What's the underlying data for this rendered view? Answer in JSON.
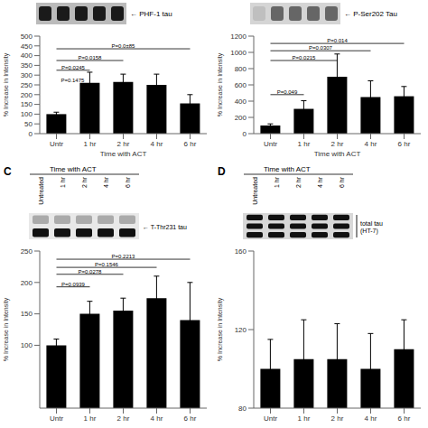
{
  "chart_data": [
    {
      "type": "bar",
      "categories": [
        "Untr",
        "1 hr",
        "2 hr",
        "4 hr",
        "6 hr"
      ],
      "values": [
        100,
        260,
        265,
        250,
        155
      ],
      "errors": [
        10,
        55,
        40,
        55,
        45
      ],
      "ylabel": "% Increase in Intensity",
      "xlabel": "Time with ACT",
      "ylim": [
        0,
        500
      ],
      "yticks": [
        0,
        50,
        100,
        150,
        200,
        250,
        300,
        350,
        400,
        450,
        500
      ],
      "color": "#000000",
      "annotations": [
        {
          "text": "P=0.1475",
          "from": "Untr",
          "to": "Untr",
          "y": 275
        },
        {
          "text": "P=0.0245",
          "from": "Untr",
          "to": "1 hr",
          "y": 325
        },
        {
          "text": "P=0.0158",
          "from": "Untr",
          "to": "2 hr",
          "y": 375
        },
        {
          "text": "P=0.0±85",
          "from": "Untr",
          "to": "6 hr",
          "y": 435
        }
      ],
      "blot": {
        "label": "← PHF-1 tau"
      }
    },
    {
      "type": "bar",
      "categories": [
        "Untr",
        "1 hr",
        "2 hr",
        "4 hr",
        "6 hr"
      ],
      "values": [
        100,
        305,
        700,
        450,
        460
      ],
      "errors": [
        20,
        100,
        280,
        200,
        120
      ],
      "ylabel": "% Increase in Intensity",
      "xlabel": "Time with ACT",
      "ylim": [
        0,
        1200
      ],
      "yticks": [
        0,
        200,
        400,
        600,
        800,
        1000,
        1200
      ],
      "color": "#000000",
      "annotations": [
        {
          "text": "P=0.049",
          "from": "Untr",
          "to": "1 hr",
          "y": 480
        },
        {
          "text": "P=0.0215",
          "from": "Untr",
          "to": "2 hr",
          "y": 900
        },
        {
          "text": "P=0.0307",
          "from": "Untr",
          "to": "4 hr",
          "y": 1020
        },
        {
          "text": "P=0.014",
          "from": "Untr",
          "to": "6 hr",
          "y": 1110
        }
      ],
      "blot": {
        "label": "← P-Ser202 Tau"
      }
    },
    {
      "type": "bar",
      "title": "C",
      "categories": [
        "Untr",
        "1 hr",
        "2 hr",
        "4 hr",
        "6 hr"
      ],
      "values": [
        100,
        150,
        155,
        175,
        140
      ],
      "errors": [
        10,
        20,
        20,
        35,
        60
      ],
      "ylabel": "% Increase in Intensity",
      "ylim": [
        0,
        250
      ],
      "yticks": [
        100,
        150,
        200,
        250
      ],
      "color": "#000000",
      "annotations": [
        {
          "text": "P=0.0939",
          "from": "Untr",
          "to": "1 hr",
          "y": 193
        },
        {
          "text": "P=0.0278",
          "from": "Untr",
          "to": "2 hr",
          "y": 213
        },
        {
          "text": "P=0.1546",
          "from": "Untr",
          "to": "4 hr",
          "y": 224
        },
        {
          "text": "P=0.2213",
          "from": "Untr",
          "to": "6 hr",
          "y": 237
        }
      ],
      "blot": {
        "header": "Time with ACT",
        "lanes": [
          "Untreated",
          "1 hr",
          "2 hr",
          "4 hr",
          "6 hr"
        ],
        "label": "← T-Thr231 tau"
      }
    },
    {
      "type": "bar",
      "title": "D",
      "categories": [
        "Untr",
        "1 hr",
        "2 hr",
        "4 hr",
        "6 hr"
      ],
      "values": [
        100,
        105,
        105,
        100,
        110
      ],
      "errors": [
        15,
        20,
        18,
        18,
        15
      ],
      "ylabel": "% Increase in Intensity",
      "ylim": [
        80,
        160
      ],
      "yticks": [
        80,
        120,
        160
      ],
      "color": "#000000",
      "blot": {
        "header": "Time with ACT",
        "lanes": [
          "Untreated",
          "1 hr",
          "2 hr",
          "4 hr",
          "6 hr"
        ],
        "label": "total tau\n(HT-7)"
      }
    }
  ]
}
